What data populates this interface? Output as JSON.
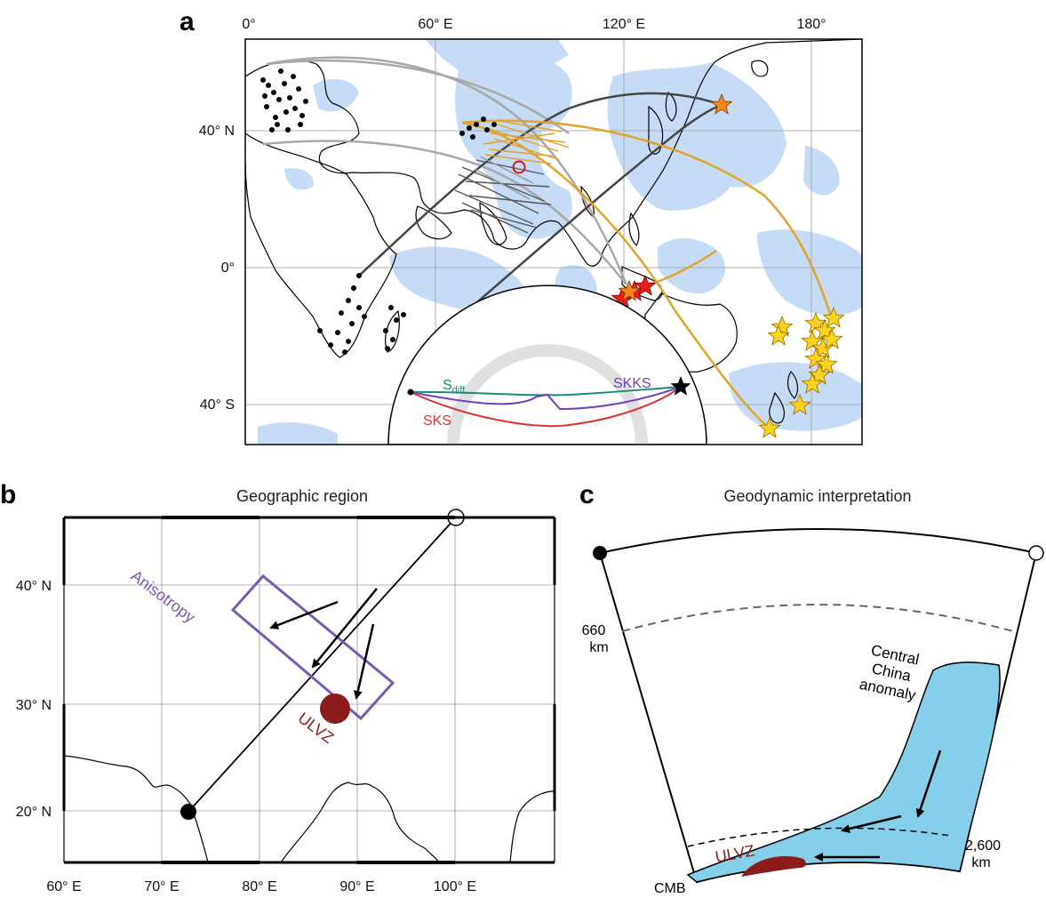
{
  "panel_a": {
    "label": "a",
    "lon_ticks": [
      "0°",
      "60° E",
      "120° E",
      "180°"
    ],
    "lat_ticks": [
      "40° N",
      "0°",
      "40° S"
    ],
    "inset": {
      "sdiff": "S",
      "sdiff_sub": "diff",
      "skks": "SKKS",
      "sks": "SKS"
    },
    "colors": {
      "anomaly": "#c6dcf6",
      "gray_path": "#a8a8a8",
      "dark_path": "#454545",
      "gold_path": "#e0a42c",
      "red_star": "#ee1c1c",
      "orange_star": "#f5871f",
      "yellow_star": "#ffd21e",
      "sdiff": "#1a8a7a",
      "skks": "#7040c0",
      "sks": "#dd3333"
    }
  },
  "panel_b": {
    "label": "b",
    "title": "Geographic region",
    "lon_ticks": [
      "60° E",
      "70° E",
      "80° E",
      "90° E",
      "100° E"
    ],
    "lat_ticks": [
      "40° N",
      "30° N",
      "20° N"
    ],
    "anisotropy": "Anisotropy",
    "ulvz": "ULVZ",
    "colors": {
      "box": "#7a5ab0",
      "ulvz": "#8c1c1c"
    }
  },
  "panel_c": {
    "label": "c",
    "title": "Geodynamic interpretation",
    "depth_660": [
      "660",
      "km"
    ],
    "depth_2600": [
      "2,600",
      "km"
    ],
    "anomaly": [
      "Central",
      "China",
      "anomaly"
    ],
    "ulvz": "ULVZ",
    "cmb": "CMB",
    "colors": {
      "anomaly": "#85cfea",
      "ulvz": "#8c1c1c"
    }
  }
}
